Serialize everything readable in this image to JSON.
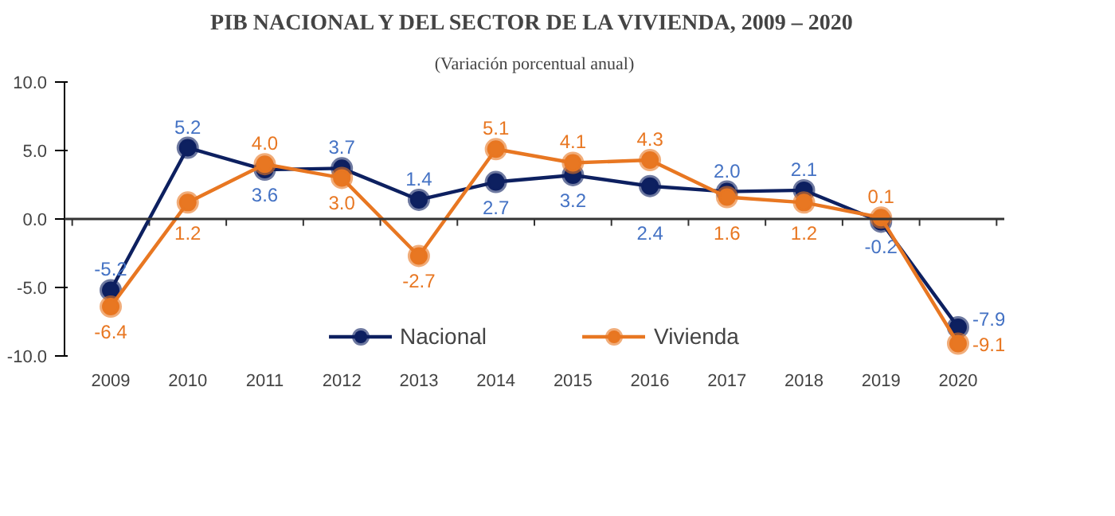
{
  "chart_data": {
    "type": "line",
    "title": "PIB NACIONAL Y DEL SECTOR DE LA VIVIENDA, 2009 – 2020",
    "subtitle": "(Variación porcentual anual)",
    "categories": [
      "2009",
      "2010",
      "2011",
      "2012",
      "2013",
      "2014",
      "2015",
      "2016",
      "2017",
      "2018",
      "2019",
      "2020"
    ],
    "series": [
      {
        "name": "Nacional",
        "color": "#0d2060",
        "values": [
          -5.2,
          5.2,
          3.6,
          3.7,
          1.4,
          2.7,
          3.2,
          2.4,
          2.0,
          2.1,
          -0.2,
          -7.9
        ],
        "value_labels": [
          "-5.2",
          "5.2",
          "3.6",
          "3.7",
          "1.4",
          "2.7",
          "3.2",
          "2.4",
          "2.0",
          "2.1",
          "-0.2",
          "-7.9"
        ]
      },
      {
        "name": "Vivienda",
        "color": "#e87722",
        "values": [
          -6.4,
          1.2,
          4.0,
          3.0,
          -2.7,
          5.1,
          4.1,
          4.3,
          1.6,
          1.2,
          0.1,
          -9.1
        ],
        "value_labels": [
          "-6.4",
          "1.2",
          "4.0",
          "3.0",
          "-2.7",
          "5.1",
          "4.1",
          "4.3",
          "1.6",
          "1.2",
          "0.1",
          "-9.1"
        ]
      }
    ],
    "ylim": [
      -10,
      10
    ],
    "yticks": [
      {
        "value": -10,
        "label": "-10.0"
      },
      {
        "value": -5,
        "label": "-5.0"
      },
      {
        "value": 0,
        "label": "0.0"
      },
      {
        "value": 5,
        "label": "5.0"
      },
      {
        "value": 10,
        "label": "10.0"
      }
    ],
    "ref_lines": [
      {
        "axis": "y",
        "value": 0,
        "color": "#333333"
      }
    ],
    "legend": "bottom",
    "marker": "circle",
    "line_style": "solid"
  }
}
